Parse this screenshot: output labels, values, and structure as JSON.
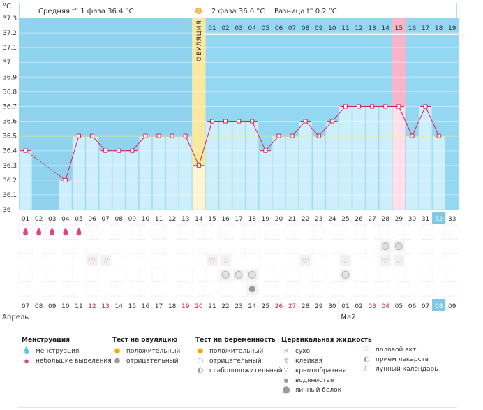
{
  "header": {
    "phase1": "Средняя t° 1 фаза 36.4 °C",
    "phase2": "2 фаза 36.6 °C",
    "difference": "Разница t° 0.2 °C",
    "unit": "°C",
    "ovulation_label": "ОВУЛЯЦИЯ"
  },
  "chart_data": {
    "type": "line",
    "ylim": [
      36.0,
      37.3
    ],
    "y_ticks": [
      "37.3",
      "37.2",
      "37.1",
      "37",
      "36.9",
      "36.8",
      "36.7",
      "36.6",
      "36.5",
      "36.4",
      "36.3",
      "36.2",
      "36.1",
      "36"
    ],
    "coverline": 36.5,
    "cycle_days": [
      "01",
      "02",
      "03",
      "04",
      "05",
      "06",
      "07",
      "08",
      "09",
      "10",
      "11",
      "12",
      "13",
      "14",
      "15",
      "16",
      "17",
      "18",
      "19",
      "20",
      "21",
      "22",
      "23",
      "24",
      "25",
      "26",
      "27",
      "28",
      "29",
      "30",
      "31",
      "32",
      "33"
    ],
    "post_ovulation_days": [
      "01",
      "02",
      "03",
      "04",
      "05",
      "06",
      "07",
      "08",
      "09",
      "10",
      "11",
      "12",
      "13",
      "14",
      "15",
      "16",
      "17",
      "18",
      "19"
    ],
    "temperatures": [
      36.4,
      null,
      null,
      36.2,
      36.5,
      36.5,
      36.4,
      36.4,
      36.4,
      36.5,
      36.5,
      36.5,
      36.5,
      36.3,
      36.6,
      36.6,
      36.6,
      36.6,
      36.4,
      36.5,
      36.5,
      36.6,
      36.5,
      36.6,
      36.7,
      36.7,
      36.7,
      36.7,
      36.7,
      36.5,
      36.7,
      36.5,
      null
    ],
    "interpolated_segment": {
      "from_day": 2,
      "to_day": 4
    },
    "ovulation_day": 14,
    "highlight_post_day": "15",
    "current_cycle_day": "32",
    "current_date": "08",
    "calendar_dates": [
      "07",
      "08",
      "09",
      "10",
      "11",
      "12",
      "13",
      "14",
      "15",
      "16",
      "17",
      "18",
      "19",
      "20",
      "21",
      "22",
      "23",
      "24",
      "25",
      "26",
      "27",
      "28",
      "29",
      "30",
      "01",
      "02",
      "03",
      "04",
      "05",
      "06",
      "07",
      "08",
      "09"
    ],
    "weekend_dates_idx": [
      5,
      6,
      12,
      13,
      19,
      20,
      26,
      27
    ],
    "month_labels": [
      {
        "label": "Апрель",
        "day": 1
      },
      {
        "label": "Май",
        "day": 25
      }
    ],
    "menstruation_days": [
      1,
      2,
      3,
      4,
      5
    ],
    "medication_days": [
      28,
      29
    ],
    "intercourse_days": [
      6,
      7,
      15,
      16,
      22,
      25,
      28,
      29
    ],
    "pregnancy_test_days": [
      16,
      17,
      18,
      25
    ],
    "ovulation_test_days": [
      18
    ]
  },
  "colors": {
    "low_band": "#8fd3ef",
    "high_band": "#94d7f2",
    "bar": "#cdeefb",
    "ovulation": "#fbe8a0",
    "highlight": "#f8b4c8",
    "line": "#dc1f52",
    "coverline": "#f2ef70"
  },
  "legend": {
    "menstruation": {
      "title": "Менструация",
      "items": [
        {
          "icon": "drop-icon",
          "label": "менструация"
        },
        {
          "icon": "small-drop-icon",
          "label": "небольшие выделения"
        }
      ]
    },
    "ovulation_test": {
      "title": "Тест на овуляцию",
      "items": [
        {
          "icon": "sun-icon",
          "label": "положительный"
        },
        {
          "icon": "gray-circle-icon",
          "label": "отрицательный"
        }
      ]
    },
    "pregnancy_test": {
      "title": "Тест на беременность",
      "items": [
        {
          "icon": "sun-icon",
          "label": "положительный"
        },
        {
          "icon": "gray-circle-icon",
          "label": "отрицательный"
        },
        {
          "icon": "gray-circle-icon",
          "label": "слабоположительный"
        }
      ]
    },
    "cervical": {
      "title": "Цервикальная жидкость",
      "items": [
        {
          "icon": "cross-icon",
          "label": "сухо"
        },
        {
          "icon": "t-icon",
          "label": "клейкая"
        },
        {
          "icon": "cream-icon",
          "label": "кремообразная"
        },
        {
          "icon": "water-drop-icon",
          "label": "водянистая"
        },
        {
          "icon": "egg-white-icon",
          "label": "яичный белок"
        }
      ]
    },
    "other": {
      "items": [
        {
          "icon": "heart-icon",
          "label": "половой акт"
        },
        {
          "icon": "pill-icon",
          "label": "прием лекарств"
        },
        {
          "icon": "moon-icon",
          "label": "лунный календарь"
        }
      ]
    }
  }
}
